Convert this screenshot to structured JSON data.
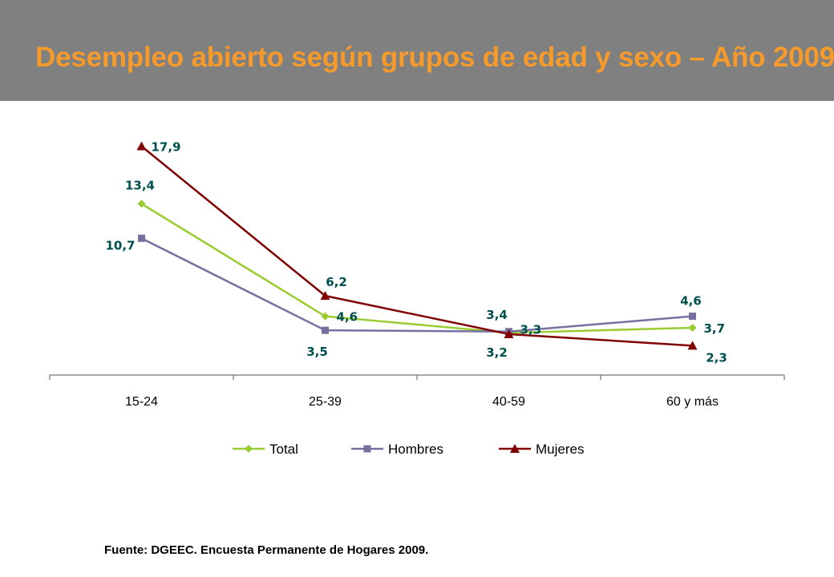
{
  "header": {
    "title": "Desempleo abierto según grupos de edad y sexo – Año 2009"
  },
  "footer": {
    "source": "Fuente: DGEEC. Encuesta Permanente de Hogares 2009."
  },
  "chart_data": {
    "type": "line",
    "title": "Desempleo abierto según grupos de edad y sexo – Año 2009",
    "xlabel": "",
    "ylabel": "",
    "categories": [
      "15-24",
      "25-39",
      "40-59",
      "60 y más"
    ],
    "ylim": [
      0,
      20
    ],
    "grid": false,
    "legend_position": "bottom",
    "series": [
      {
        "name": "Total",
        "values": [
          13.4,
          4.6,
          3.3,
          3.7
        ],
        "labels": [
          "13,4",
          "4,6",
          "3,3",
          "3,7"
        ],
        "color": "#9acd32",
        "marker": "diamond"
      },
      {
        "name": "Hombres",
        "values": [
          10.7,
          3.5,
          3.4,
          4.6
        ],
        "labels": [
          "10,7",
          "3,5",
          "3,4",
          "4,6"
        ],
        "color": "#7570a0",
        "marker": "square"
      },
      {
        "name": "Mujeres",
        "values": [
          17.9,
          6.2,
          3.2,
          2.3
        ],
        "labels": [
          "17,9",
          "6,2",
          "3,2",
          "2,3"
        ],
        "color": "#800000",
        "marker": "triangle"
      }
    ]
  }
}
